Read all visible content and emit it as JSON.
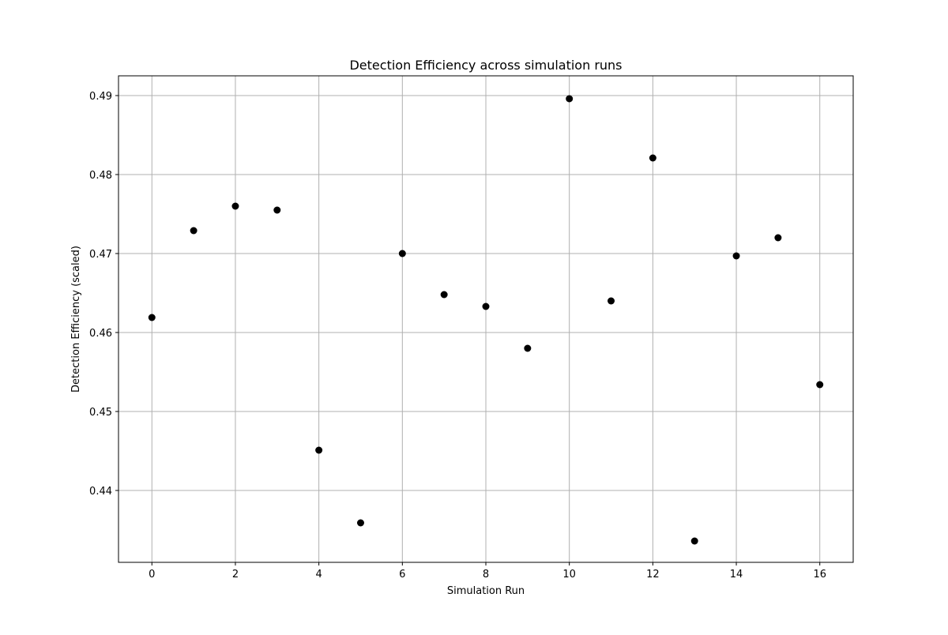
{
  "chart_data": {
    "type": "scatter",
    "title": "Detection Efficiency across simulation runs",
    "xlabel": "Simulation Run",
    "ylabel": "Detection Efficiency (scaled)",
    "xlim": [
      -0.8,
      16.8
    ],
    "ylim": [
      0.4309,
      0.4925
    ],
    "x_ticks": [
      0,
      2,
      4,
      6,
      8,
      10,
      12,
      14,
      16
    ],
    "y_ticks": [
      0.44,
      0.45,
      0.46,
      0.47,
      0.48,
      0.49
    ],
    "x_tick_labels": [
      "0",
      "2",
      "4",
      "6",
      "8",
      "10",
      "12",
      "14",
      "16"
    ],
    "y_tick_labels": [
      "0.44",
      "0.45",
      "0.46",
      "0.47",
      "0.48",
      "0.49"
    ],
    "grid": true,
    "series": [
      {
        "x": [
          0,
          1,
          2,
          3,
          4,
          5,
          6,
          7,
          8,
          9,
          10,
          11,
          12,
          13,
          14,
          15,
          16
        ],
        "y": [
          0.4619,
          0.4729,
          0.476,
          0.4755,
          0.4451,
          0.4359,
          0.47,
          0.4648,
          0.4633,
          0.458,
          0.4896,
          0.464,
          0.4821,
          0.4336,
          0.4697,
          0.472,
          0.4534
        ],
        "color": "#000000",
        "marker": "circle"
      }
    ]
  }
}
